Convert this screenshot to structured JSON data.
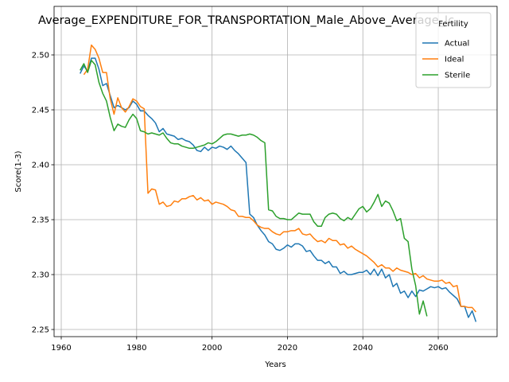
{
  "chart_data": {
    "type": "line",
    "title": "Average_EXPENDITURE_FOR_TRANSPORTATION_Male_Above_Average_Ic",
    "xlabel": "Years",
    "ylabel": "Score(1-3)",
    "legend_title": "Fertility",
    "legend": "upper right",
    "grid": true,
    "xlim": [
      1958.1,
      2075.6
    ],
    "ylim": [
      2.2435,
      2.5442
    ],
    "xticks": [
      1960,
      1980,
      2000,
      2020,
      2040,
      2060
    ],
    "yticks": [
      2.25,
      {
        "value": 2.3,
        "label": "2.30"
      },
      2.35,
      {
        "value": 2.4,
        "label": "2.40"
      },
      2.45,
      {
        "value": 2.5,
        "label": "2.50"
      }
    ],
    "x": [
      1965,
      1966,
      1967,
      1968,
      1969,
      1970,
      1971,
      1972,
      1973,
      1974,
      1975,
      1976,
      1977,
      1978,
      1979,
      1980,
      1981,
      1982,
      1983,
      1984,
      1985,
      1986,
      1987,
      1988,
      1989,
      1990,
      1991,
      1992,
      1993,
      1994,
      1995,
      1996,
      1997,
      1998,
      1999,
      2000,
      2001,
      2002,
      2003,
      2004,
      2005,
      2006,
      2007,
      2008,
      2009,
      2010,
      2011,
      2012,
      2013,
      2014,
      2015,
      2016,
      2017,
      2018,
      2019,
      2020,
      2021,
      2022,
      2023,
      2024,
      2025,
      2026,
      2027,
      2028,
      2029,
      2030,
      2031,
      2032,
      2033,
      2034,
      2035,
      2036,
      2037,
      2038,
      2039,
      2040,
      2041,
      2042,
      2043,
      2044,
      2045,
      2046,
      2047,
      2048,
      2049,
      2050,
      2051,
      2052,
      2053,
      2054,
      2055,
      2056,
      2057,
      2058,
      2059,
      2060,
      2061,
      2062,
      2063,
      2064,
      2065,
      2066,
      2067,
      2068,
      2069,
      2070
    ],
    "series": [
      {
        "name": "Actual",
        "color": "#1f77b4",
        "values": [
          2.483,
          2.49,
          2.485,
          2.497,
          2.497,
          2.487,
          2.472,
          2.474,
          2.463,
          2.452,
          2.454,
          2.452,
          2.45,
          2.452,
          2.458,
          2.455,
          2.449,
          2.449,
          2.445,
          2.442,
          2.438,
          2.43,
          2.433,
          2.428,
          2.427,
          2.426,
          2.423,
          2.424,
          2.422,
          2.421,
          2.418,
          2.413,
          2.412,
          2.416,
          2.413,
          2.416,
          2.415,
          2.417,
          2.416,
          2.414,
          2.417,
          2.413,
          2.41,
          2.406,
          2.402,
          2.355,
          2.352,
          2.345,
          2.34,
          2.336,
          2.33,
          2.328,
          2.323,
          2.322,
          2.324,
          2.327,
          2.325,
          2.328,
          2.328,
          2.326,
          2.321,
          2.322,
          2.317,
          2.313,
          2.313,
          2.31,
          2.312,
          2.307,
          2.307,
          2.301,
          2.303,
          2.3,
          2.3,
          2.301,
          2.302,
          2.302,
          2.304,
          2.3,
          2.305,
          2.299,
          2.305,
          2.297,
          2.3,
          2.289,
          2.292,
          2.283,
          2.285,
          2.279,
          2.285,
          2.28,
          2.286,
          2.285,
          2.287,
          2.289,
          2.288,
          2.289,
          2.287,
          2.288,
          2.284,
          2.281,
          2.278,
          2.271,
          2.271,
          2.261,
          2.267,
          2.257
        ]
      },
      {
        "name": "Ideal",
        "color": "#ff7f0e",
        "values": [
          null,
          2.482,
          2.487,
          2.509,
          2.505,
          2.497,
          2.484,
          2.484,
          2.46,
          2.446,
          2.461,
          2.452,
          2.448,
          2.453,
          2.46,
          2.458,
          2.453,
          2.451,
          2.374,
          2.378,
          2.377,
          2.364,
          2.366,
          2.362,
          2.363,
          2.367,
          2.366,
          2.369,
          2.369,
          2.371,
          2.372,
          2.368,
          2.37,
          2.367,
          2.368,
          2.364,
          2.366,
          2.365,
          2.364,
          2.362,
          2.359,
          2.358,
          2.353,
          2.353,
          2.352,
          2.352,
          2.349,
          2.345,
          2.343,
          2.342,
          2.342,
          2.339,
          2.337,
          2.336,
          2.339,
          2.339,
          2.34,
          2.34,
          2.342,
          2.337,
          2.336,
          2.337,
          2.333,
          2.33,
          2.331,
          2.329,
          2.333,
          2.331,
          2.331,
          2.327,
          2.328,
          2.324,
          2.326,
          2.323,
          2.321,
          2.319,
          2.317,
          2.314,
          2.311,
          2.307,
          2.309,
          2.306,
          2.306,
          2.303,
          2.306,
          2.304,
          2.303,
          2.302,
          2.3,
          2.301,
          2.297,
          2.299,
          2.296,
          2.295,
          2.294,
          2.294,
          2.295,
          2.292,
          2.293,
          2.289,
          2.29,
          2.271,
          2.271,
          2.27,
          2.27,
          2.266
        ]
      },
      {
        "name": "Sterile",
        "color": "#2ca02c",
        "values": [
          2.486,
          2.492,
          2.484,
          2.495,
          2.491,
          2.475,
          2.465,
          2.458,
          2.443,
          2.431,
          2.437,
          2.435,
          2.434,
          2.441,
          2.446,
          2.442,
          2.431,
          2.43,
          2.428,
          2.429,
          2.428,
          2.427,
          2.429,
          2.424,
          2.42,
          2.419,
          2.419,
          2.417,
          2.416,
          2.415,
          2.415,
          2.416,
          2.417,
          2.418,
          2.42,
          2.419,
          2.421,
          2.424,
          2.427,
          2.428,
          2.428,
          2.427,
          2.426,
          2.427,
          2.427,
          2.428,
          2.427,
          2.425,
          2.422,
          2.42,
          2.359,
          2.358,
          2.353,
          2.351,
          2.351,
          2.35,
          2.35,
          2.353,
          2.356,
          2.355,
          2.355,
          2.355,
          2.348,
          2.344,
          2.344,
          2.352,
          2.355,
          2.356,
          2.355,
          2.351,
          2.349,
          2.352,
          2.35,
          2.355,
          2.36,
          2.362,
          2.357,
          2.36,
          2.366,
          2.373,
          2.362,
          2.367,
          2.365,
          2.358,
          2.349,
          2.351,
          2.333,
          2.33,
          2.305,
          2.29,
          2.264,
          2.276,
          2.262,
          null,
          null,
          null,
          null,
          null,
          null,
          null,
          null,
          null,
          null,
          null,
          null,
          null
        ]
      }
    ]
  }
}
